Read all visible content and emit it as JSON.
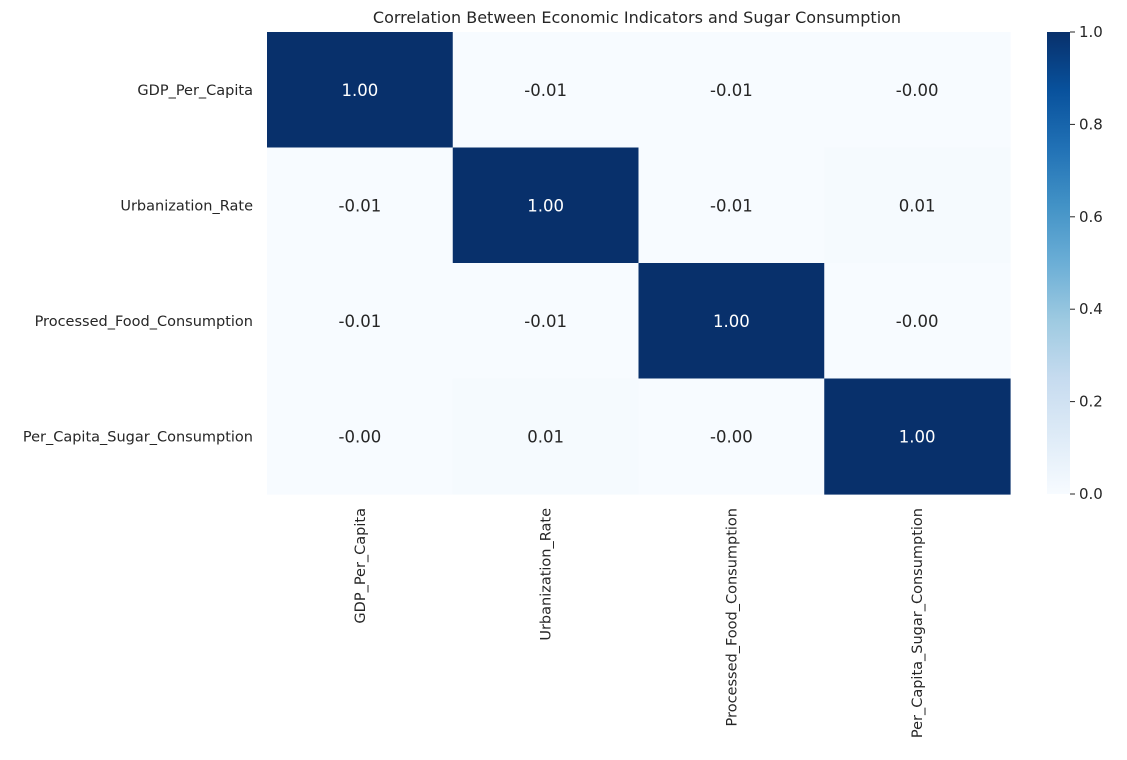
{
  "chart_data": {
    "type": "heatmap",
    "title": "Correlation Between Economic Indicators and Sugar Consumption",
    "xlabel": "",
    "ylabel": "",
    "row_labels": [
      "GDP_Per_Capita",
      "Urbanization_Rate",
      "Processed_Food_Consumption",
      "Per_Capita_Sugar_Consumption"
    ],
    "col_labels": [
      "GDP_Per_Capita",
      "Urbanization_Rate",
      "Processed_Food_Consumption",
      "Per_Capita_Sugar_Consumption"
    ],
    "values": [
      [
        1.0,
        -0.01,
        -0.01,
        -0.004
      ],
      [
        -0.01,
        1.0,
        -0.01,
        0.01
      ],
      [
        -0.01,
        -0.01,
        1.0,
        -0.004
      ],
      [
        -0.004,
        0.01,
        -0.004,
        1.0
      ]
    ],
    "value_labels": [
      [
        "1.00",
        "-0.01",
        "-0.01",
        "-0.00"
      ],
      [
        "-0.01",
        "1.00",
        "-0.01",
        "0.01"
      ],
      [
        "-0.01",
        "-0.01",
        "1.00",
        "-0.00"
      ],
      [
        "-0.00",
        "0.01",
        "-0.00",
        "1.00"
      ]
    ],
    "colormap": "Blues",
    "color_range": [
      0.0,
      1.0
    ],
    "colorbar_ticks": [
      "0.0",
      "0.2",
      "0.4",
      "0.6",
      "0.8",
      "1.0"
    ],
    "colors": {
      "low": "#f7fbff",
      "high": "#08306b",
      "text_dark": "#262626",
      "text_light": "#ffffff"
    }
  }
}
